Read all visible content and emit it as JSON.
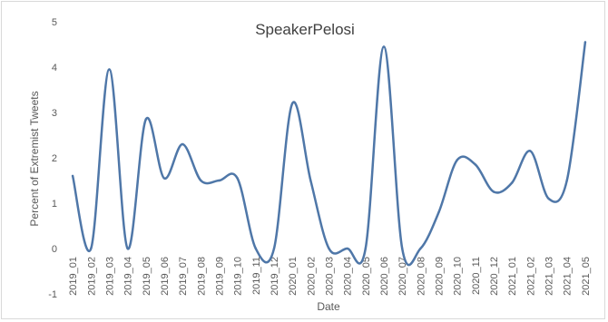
{
  "chart_data": {
    "type": "line",
    "title": "SpeakerPelosi",
    "xlabel": "Date",
    "ylabel": "Percent of Extremist Tweets",
    "ylim": [
      -1,
      5
    ],
    "yticks": [
      -1,
      0,
      1,
      2,
      3,
      4,
      5
    ],
    "grid": false,
    "legend": "none",
    "line_color": "#4f77a8",
    "x": [
      "2019_01",
      "2019_02",
      "2019_03",
      "2019_04",
      "2019_05",
      "2019_06",
      "2019_07",
      "2019_08",
      "2019_09",
      "2019_10",
      "2019_11",
      "2019_12",
      "2020_01",
      "2020_02",
      "2020_03",
      "2020_04",
      "2020_05",
      "2020_06",
      "2020_07",
      "2020_08",
      "2020_09",
      "2020_10",
      "2020_11",
      "2020_12",
      "2021_01",
      "2021_02",
      "2021_03",
      "2021_04",
      "2021_05"
    ],
    "series": [
      {
        "values": [
          1.6,
          0.0,
          3.95,
          0.0,
          2.85,
          1.55,
          2.3,
          1.5,
          1.5,
          1.55,
          0.0,
          0.0,
          3.2,
          1.5,
          0.0,
          0.0,
          0.0,
          4.45,
          0.0,
          0.0,
          0.8,
          1.95,
          1.85,
          1.25,
          1.45,
          2.15,
          1.1,
          1.5,
          4.55
        ]
      }
    ]
  }
}
